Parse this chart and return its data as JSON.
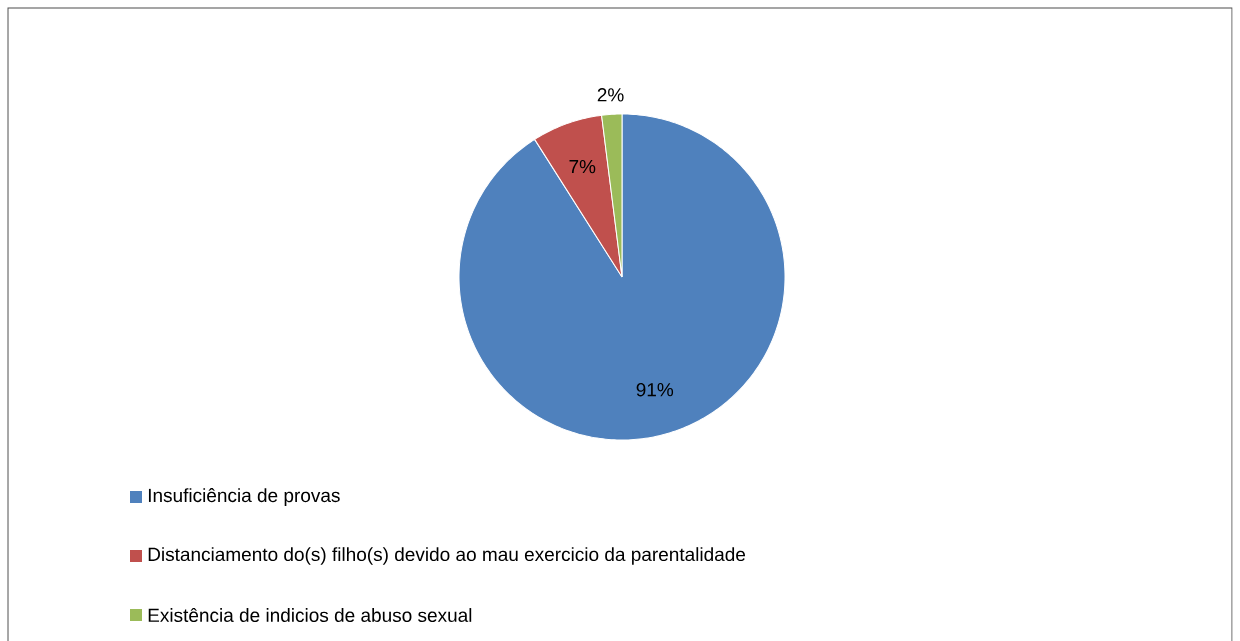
{
  "chart_data": {
    "type": "pie",
    "categories": [
      "Insuficiência de provas",
      "Distanciamento do(s) filho(s) devido ao mau exercicio da parentalidade",
      "Existência de indicios de abuso sexual"
    ],
    "values": [
      91,
      7,
      2
    ],
    "value_labels": [
      "91%",
      "7%",
      "2%"
    ],
    "colors": [
      "#4f81bd",
      "#c0504d",
      "#9bbb59"
    ],
    "legend": "bottom"
  }
}
